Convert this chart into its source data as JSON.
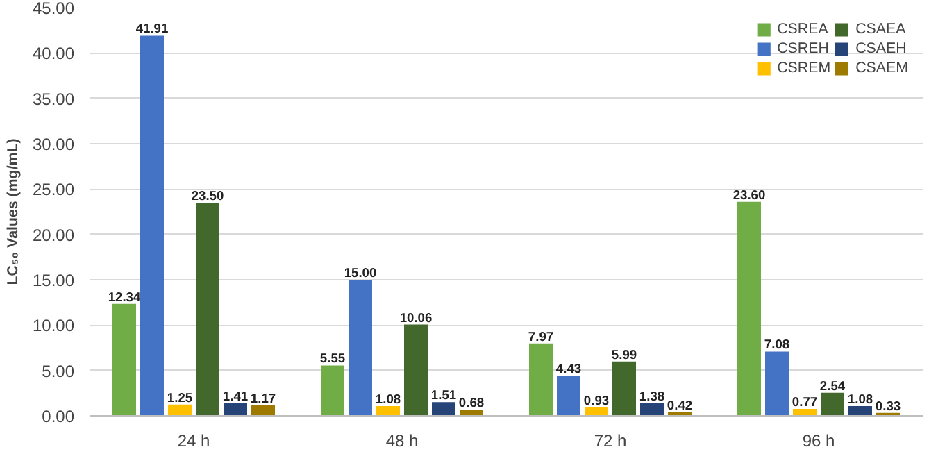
{
  "chart_data": {
    "type": "bar",
    "ylabel": "LC₅₀ Values (mg/mL)",
    "categories": [
      "24 h",
      "48 h",
      "72 h",
      "96 h"
    ],
    "series": [
      {
        "name": "CSREA",
        "color": "#70ad47",
        "values": [
          12.34,
          5.55,
          7.97,
          23.6
        ],
        "value_labels": [
          "12.34",
          "5.55",
          "7.97",
          "23.60"
        ]
      },
      {
        "name": "CSREH",
        "color": "#4472c4",
        "values": [
          41.91,
          15.0,
          4.43,
          7.08
        ],
        "value_labels": [
          "41.91",
          "15.00",
          "4.43",
          "7.08"
        ]
      },
      {
        "name": "CSREM",
        "color": "#ffc000",
        "values": [
          1.25,
          1.08,
          0.93,
          0.77
        ],
        "value_labels": [
          "1.25",
          "1.08",
          "0.93",
          "0.77"
        ]
      },
      {
        "name": "CSAEA",
        "color": "#43682b",
        "values": [
          23.5,
          10.06,
          5.99,
          2.54
        ],
        "value_labels": [
          "23.50",
          "10.06",
          "5.99",
          "2.54"
        ]
      },
      {
        "name": "CSAEH",
        "color": "#264478",
        "values": [
          1.41,
          1.51,
          1.38,
          1.08
        ],
        "value_labels": [
          "1.41",
          "1.51",
          "1.38",
          "1.08"
        ]
      },
      {
        "name": "CSAEM",
        "color": "#9e7a00",
        "values": [
          1.17,
          0.68,
          0.42,
          0.33
        ],
        "value_labels": [
          "1.17",
          "0.68",
          "0.42",
          "0.33"
        ]
      }
    ],
    "ylim": [
      0,
      45
    ],
    "yticks": [
      {
        "value": 0,
        "label": "0.00"
      },
      {
        "value": 5,
        "label": "5.00"
      },
      {
        "value": 10,
        "label": "10.00"
      },
      {
        "value": 15,
        "label": "15.00"
      },
      {
        "value": 20,
        "label": "20.00"
      },
      {
        "value": 25,
        "label": "25.00"
      },
      {
        "value": 30,
        "label": "30.00"
      },
      {
        "value": 35,
        "label": "35.00"
      },
      {
        "value": 40,
        "label": "40.00"
      },
      {
        "value": 45,
        "label": "45.00"
      }
    ],
    "grid": "y",
    "legend": "top right"
  }
}
